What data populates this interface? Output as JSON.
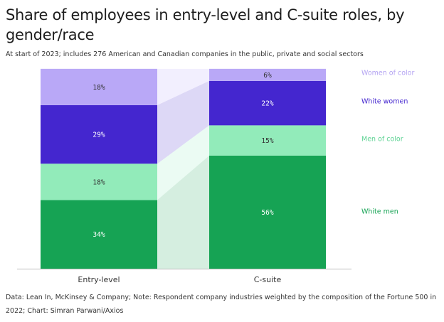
{
  "title": "Share of employees in entry-level and C-suite roles, by gender/race",
  "subtitle": "At start of 2023; includes 276 American and Canadian companies in the public, private and social sectors",
  "footer": "Data: Lean In, McKinsey & Company; Note: Respondent company industries weighted by the composition of the Fortune 500 in 2022; Chart: Simran Parwani/Axios",
  "chart_data": {
    "type": "bar",
    "stacked": true,
    "categories": [
      "Entry-level",
      "C-suite"
    ],
    "ylim": [
      0,
      100
    ],
    "grid": false,
    "legend_placement": "right",
    "series": [
      {
        "name": "White men",
        "values": [
          34,
          56
        ],
        "color": "#16a354",
        "label_color": "#ffffff",
        "legend_color": "#16a354"
      },
      {
        "name": "Men of color",
        "values": [
          18,
          15
        ],
        "color": "#92ebba",
        "label_color": "#333333",
        "legend_color": "#5ed394"
      },
      {
        "name": "White women",
        "values": [
          29,
          22
        ],
        "color": "#4426cf",
        "label_color": "#ffffff",
        "legend_color": "#4426cf"
      },
      {
        "name": "Women of color",
        "values": [
          18,
          6
        ],
        "color": "#b9a8f7",
        "label_color": "#333333",
        "legend_color": "#b3a2f2"
      }
    ],
    "value_labels": [
      [
        "34%",
        "56%"
      ],
      [
        "18%",
        "15%"
      ],
      [
        "29%",
        "22%"
      ],
      [
        "18%",
        "6%"
      ]
    ]
  }
}
